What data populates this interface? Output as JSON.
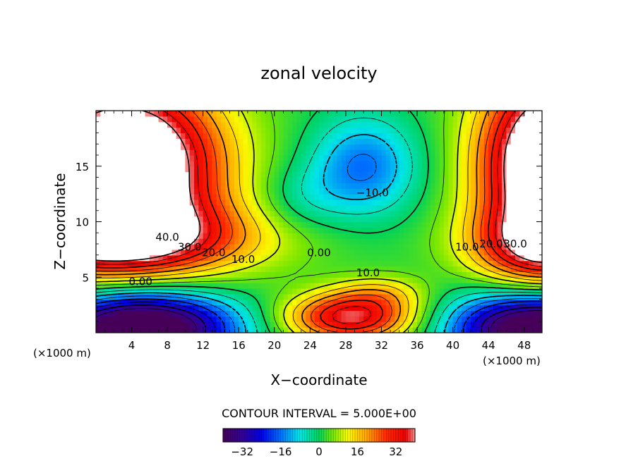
{
  "chart_data": {
    "type": "heatmap",
    "title": "zonal velocity",
    "xlabel": "X−coordinate",
    "ylabel": "Z−coordinate",
    "x_unit_left": "(×1000 m)",
    "x_unit_right": "(×1000 m)",
    "xlim": [
      0,
      50
    ],
    "ylim": [
      0,
      20
    ],
    "x_ticks": [
      4,
      8,
      12,
      16,
      20,
      24,
      28,
      32,
      36,
      40,
      44,
      48
    ],
    "x_tick_labels": [
      "4",
      "8",
      "12",
      "16",
      "20",
      "24",
      "28",
      "32",
      "36",
      "40",
      "44",
      "48"
    ],
    "y_ticks": [
      5,
      10,
      15
    ],
    "y_tick_labels": [
      "5",
      "10",
      "15"
    ],
    "contour_interval_text": "CONTOUR INTERVAL = 5.000E+00",
    "colorbar": {
      "range": [
        -40,
        40
      ],
      "ticks": [
        -32,
        -16,
        0,
        16,
        32
      ],
      "tick_labels": [
        "−32",
        "−16",
        "0",
        "16",
        "32"
      ]
    },
    "contour_labels": [
      {
        "text": "40.0",
        "x": 8.0,
        "y": 8.6
      },
      {
        "text": "30.0",
        "x": 10.5,
        "y": 7.7
      },
      {
        "text": "20.0",
        "x": 13.2,
        "y": 7.2
      },
      {
        "text": "10.0",
        "x": 16.5,
        "y": 6.6
      },
      {
        "text": "0.00",
        "x": 5.0,
        "y": 4.6
      },
      {
        "text": "0.00",
        "x": 25.0,
        "y": 7.2
      },
      {
        "text": "10.0",
        "x": 30.5,
        "y": 5.4
      },
      {
        "text": "−10.0",
        "x": 31.0,
        "y": 12.6
      },
      {
        "text": "10.0",
        "x": 41.6,
        "y": 7.7
      },
      {
        "text": "20.0",
        "x": 44.3,
        "y": 8.0
      },
      {
        "text": "30.0",
        "x": 47.0,
        "y": 8.0
      }
    ],
    "features": [
      {
        "name": "westerly_jet_upper_left",
        "x": 7,
        "y": 12,
        "value": 45
      },
      {
        "name": "westerly_jet_upper_right",
        "x": 48,
        "y": 14,
        "value": 40
      },
      {
        "name": "easterly_minimum_upper_center",
        "x": 30,
        "y": 15,
        "value": -12
      },
      {
        "name": "easterly_lower_left",
        "x": 6,
        "y": 1.2,
        "value": -38
      },
      {
        "name": "easterly_lower_right",
        "x": 48,
        "y": 1.2,
        "value": -38
      },
      {
        "name": "westerly_lower_center",
        "x": 28,
        "y": 1.0,
        "value": 35
      }
    ]
  }
}
